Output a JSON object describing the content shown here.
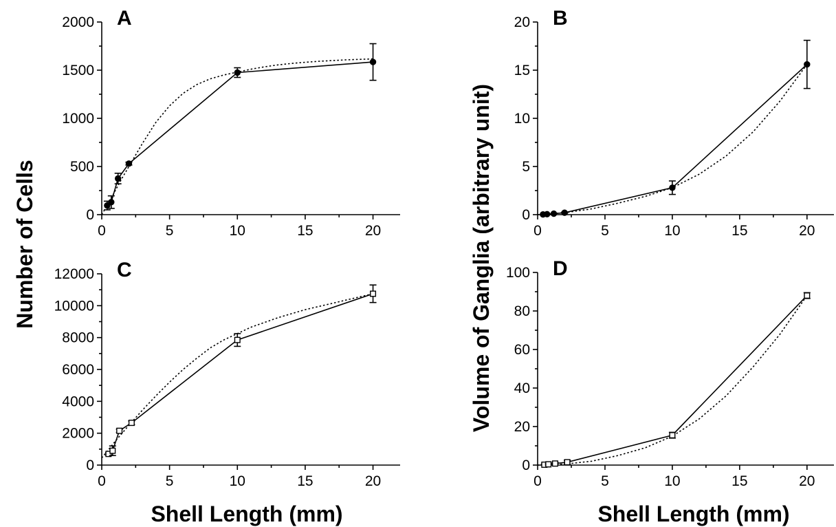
{
  "figure": {
    "ylabel_left": "Number of Cells",
    "ylabel_right": "Volume of Ganglia (arbitrary unit)",
    "xlabel_left": "Shell Length (mm)",
    "xlabel_right": "Shell Length (mm)"
  },
  "chart_data": [
    {
      "panel": "A",
      "type": "line",
      "xlabel": "",
      "ylabel": "",
      "xlim": [
        0,
        22
      ],
      "ylim": [
        0,
        2000
      ],
      "xticks": [
        0,
        5,
        10,
        15,
        20
      ],
      "yticks": [
        0,
        500,
        1000,
        1500,
        2000
      ],
      "marker": "filled-circle",
      "series": [
        {
          "x": [
            0.4,
            0.7,
            1.2,
            2,
            10,
            20
          ],
          "y": [
            95,
            130,
            375,
            530,
            1475,
            1585
          ],
          "err": [
            45,
            65,
            55,
            15,
            50,
            190
          ]
        }
      ],
      "fit": {
        "style": "dotted",
        "x": [
          0,
          0.5,
          1,
          1.5,
          2,
          3,
          4,
          5,
          6,
          7,
          8,
          9,
          10,
          11,
          12,
          13,
          14,
          15,
          16,
          17,
          18,
          19,
          20
        ],
        "y": [
          0,
          120,
          250,
          380,
          500,
          740,
          960,
          1130,
          1260,
          1350,
          1410,
          1450,
          1480,
          1510,
          1535,
          1555,
          1570,
          1582,
          1592,
          1600,
          1607,
          1612,
          1617
        ]
      }
    },
    {
      "panel": "B",
      "type": "line",
      "xlabel": "",
      "ylabel": "",
      "xlim": [
        0,
        22
      ],
      "ylim": [
        0,
        20
      ],
      "xticks": [
        0,
        5,
        10,
        15,
        20
      ],
      "yticks": [
        0,
        5,
        10,
        15,
        20
      ],
      "marker": "filled-circle",
      "series": [
        {
          "x": [
            0.4,
            0.7,
            1.2,
            2,
            10,
            20
          ],
          "y": [
            0.02,
            0.05,
            0.1,
            0.2,
            2.8,
            15.6
          ],
          "err": [
            0,
            0,
            0,
            0.05,
            0.7,
            2.5
          ]
        }
      ],
      "fit": {
        "style": "dotted",
        "x": [
          0,
          2,
          4,
          6,
          8,
          10,
          12,
          14,
          16,
          18,
          20
        ],
        "y": [
          0,
          0.2,
          0.6,
          1.2,
          1.9,
          2.8,
          4.2,
          6.1,
          8.6,
          11.8,
          15.6
        ]
      }
    },
    {
      "panel": "C",
      "type": "line",
      "xlabel": "",
      "ylabel": "",
      "xlim": [
        0,
        22
      ],
      "ylim": [
        0,
        12000
      ],
      "xticks": [
        0,
        5,
        10,
        15,
        20
      ],
      "yticks": [
        0,
        2000,
        4000,
        6000,
        8000,
        10000,
        12000
      ],
      "marker": "open-square",
      "series": [
        {
          "x": [
            0.5,
            0.8,
            1.3,
            2.2,
            10,
            20
          ],
          "y": [
            700,
            900,
            2150,
            2650,
            7850,
            10750
          ],
          "err": [
            80,
            300,
            100,
            120,
            400,
            550
          ]
        }
      ],
      "fit": {
        "style": "dotted",
        "x": [
          0,
          1,
          2,
          3,
          4,
          5,
          6,
          7,
          8,
          9,
          10,
          11,
          12,
          13,
          14,
          15,
          16,
          17,
          18,
          19,
          20
        ],
        "y": [
          450,
          1500,
          2500,
          3450,
          4350,
          5200,
          6000,
          6700,
          7350,
          7850,
          8250,
          8650,
          8950,
          9250,
          9500,
          9750,
          9950,
          10150,
          10350,
          10550,
          10750
        ]
      }
    },
    {
      "panel": "D",
      "type": "line",
      "xlabel": "",
      "ylabel": "",
      "xlim": [
        0,
        22
      ],
      "ylim": [
        0,
        100
      ],
      "xticks": [
        0,
        5,
        10,
        15,
        20
      ],
      "yticks": [
        0,
        20,
        40,
        60,
        80,
        100
      ],
      "marker": "open-square",
      "series": [
        {
          "x": [
            0.5,
            0.8,
            1.3,
            2.2,
            10,
            20
          ],
          "y": [
            0.2,
            0.4,
            0.8,
            1.5,
            15.5,
            88
          ],
          "err": [
            0.3,
            0.4,
            0.6,
            1,
            1.5,
            1.5
          ]
        }
      ],
      "fit": {
        "style": "dotted",
        "x": [
          0,
          2,
          4,
          6,
          8,
          10,
          12,
          14,
          16,
          18,
          20
        ],
        "y": [
          0,
          0.5,
          2,
          5,
          9,
          15,
          24,
          36,
          51,
          68,
          88
        ]
      }
    }
  ]
}
